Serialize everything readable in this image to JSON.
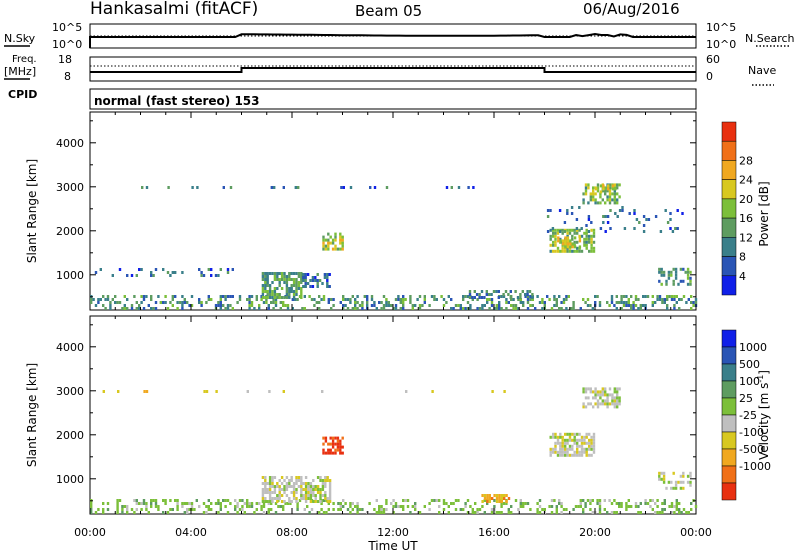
{
  "header": {
    "station": "Hankasalmi (fitACF)",
    "beam": "Beam 05",
    "date": "06/Aug/2016"
  },
  "top_panels": {
    "nsky_label": "N.Sky",
    "nsearch_label": "N.Search",
    "log_hi": "10^5",
    "log_lo": "10^0",
    "freq_label_1": "Freq.",
    "freq_label_2": "[MHz]",
    "freq_hi": "18",
    "freq_lo": "8",
    "nave_label": "Nave",
    "nave_hi": "60",
    "nave_lo": "0",
    "cpid_label": "CPID",
    "mode_text": "normal (fast stereo) 153"
  },
  "colors": {
    "power_scale": [
      "#1020e8",
      "#2a55b5",
      "#3a7f8a",
      "#5e9c60",
      "#7cbf3a",
      "#d8c820",
      "#f0a820",
      "#f07018",
      "#e83010"
    ],
    "velocity_scale": [
      "#1020e8",
      "#2a55b5",
      "#3a7f8a",
      "#5e9c60",
      "#7cbf3a",
      "#bfbfbf",
      "#d8c820",
      "#f0a820",
      "#f07018",
      "#e83010"
    ]
  },
  "chart_data": [
    {
      "type": "heatmap",
      "panel": "power",
      "ylabel": "Slant Range [km]",
      "xlabel": "Time UT",
      "x_ticks": [
        "00:00",
        "04:00",
        "08:00",
        "12:00",
        "16:00",
        "20:00",
        "00:00"
      ],
      "y_ticks": [
        1000,
        2000,
        3000,
        4000
      ],
      "ylim": [
        200,
        4700
      ],
      "colorbar_label": "Power [dB]",
      "colorbar_ticks": [
        "4",
        "8",
        "12",
        "16",
        "20",
        "24",
        "28"
      ],
      "regions": [
        {
          "t0": 0.0,
          "t1": 24.0,
          "r0": 200,
          "r1": 500,
          "v": 10,
          "dens": 0.35
        },
        {
          "t0": 6.8,
          "t1": 8.4,
          "r0": 450,
          "r1": 1000,
          "v": 12,
          "dens": 0.75
        },
        {
          "t0": 8.4,
          "t1": 9.5,
          "r0": 700,
          "r1": 1000,
          "v": 6,
          "dens": 0.45
        },
        {
          "t0": 0.0,
          "t1": 6.0,
          "r0": 950,
          "r1": 1100,
          "v": 6,
          "dens": 0.15
        },
        {
          "t0": 9.2,
          "t1": 10.0,
          "r0": 1550,
          "r1": 1900,
          "v": 17,
          "dens": 0.6
        },
        {
          "t0": 18.2,
          "t1": 20.0,
          "r0": 1500,
          "r1": 2000,
          "v": 14,
          "dens": 0.7
        },
        {
          "t0": 18.5,
          "t1": 19.5,
          "r0": 1600,
          "r1": 1850,
          "v": 20,
          "dens": 0.6
        },
        {
          "t0": 19.5,
          "t1": 21.0,
          "r0": 2600,
          "r1": 3050,
          "v": 14,
          "dens": 0.6
        },
        {
          "t0": 20.0,
          "t1": 20.8,
          "r0": 2850,
          "r1": 3000,
          "v": 20,
          "dens": 0.5
        },
        {
          "t0": 22.5,
          "t1": 23.8,
          "r0": 750,
          "r1": 1150,
          "v": 10,
          "dens": 0.45
        },
        {
          "t0": 15.0,
          "t1": 17.5,
          "r0": 450,
          "r1": 650,
          "v": 8,
          "dens": 0.3
        },
        {
          "t0": 18.0,
          "t1": 23.5,
          "r0": 1950,
          "r1": 2500,
          "v": 6,
          "dens": 0.12
        },
        {
          "t0": 0.5,
          "t1": 16.5,
          "r0": 2950,
          "r1": 3000,
          "v": 6,
          "dens": 0.12
        }
      ]
    },
    {
      "type": "heatmap",
      "panel": "velocity",
      "ylabel": "Slant Range [km]",
      "xlabel": "Time UT",
      "x_ticks": [
        "00:00",
        "04:00",
        "08:00",
        "12:00",
        "16:00",
        "20:00",
        "00:00"
      ],
      "y_ticks": [
        1000,
        2000,
        3000,
        4000
      ],
      "ylim": [
        200,
        4700
      ],
      "colorbar_label": "Velocity [m s^-1]",
      "colorbar_ticks": [
        "1000",
        "500",
        "100",
        "25",
        "-25",
        "-100",
        "-500",
        "-1000"
      ],
      "regions": [
        {
          "t0": 0.0,
          "t1": 24.0,
          "r0": 200,
          "r1": 500,
          "v": 4,
          "dens": 0.3
        },
        {
          "t0": 6.8,
          "t1": 9.5,
          "r0": 450,
          "r1": 1000,
          "v": 5,
          "dens": 0.7
        },
        {
          "t0": 9.2,
          "t1": 10.0,
          "r0": 1550,
          "r1": 1900,
          "v": 9,
          "dens": 0.6
        },
        {
          "t0": 18.2,
          "t1": 20.0,
          "r0": 1500,
          "r1": 2000,
          "v": 5,
          "dens": 0.7
        },
        {
          "t0": 19.5,
          "t1": 21.0,
          "r0": 2600,
          "r1": 3050,
          "v": 5,
          "dens": 0.6
        },
        {
          "t0": 15.5,
          "t1": 16.6,
          "r0": 450,
          "r1": 650,
          "v": 7,
          "dens": 0.7
        },
        {
          "t0": 22.5,
          "t1": 23.8,
          "r0": 750,
          "r1": 1150,
          "v": 5,
          "dens": 0.4
        },
        {
          "t0": 0.5,
          "t1": 16.5,
          "r0": 2950,
          "r1": 3000,
          "v": 6,
          "dens": 0.12
        }
      ]
    }
  ]
}
